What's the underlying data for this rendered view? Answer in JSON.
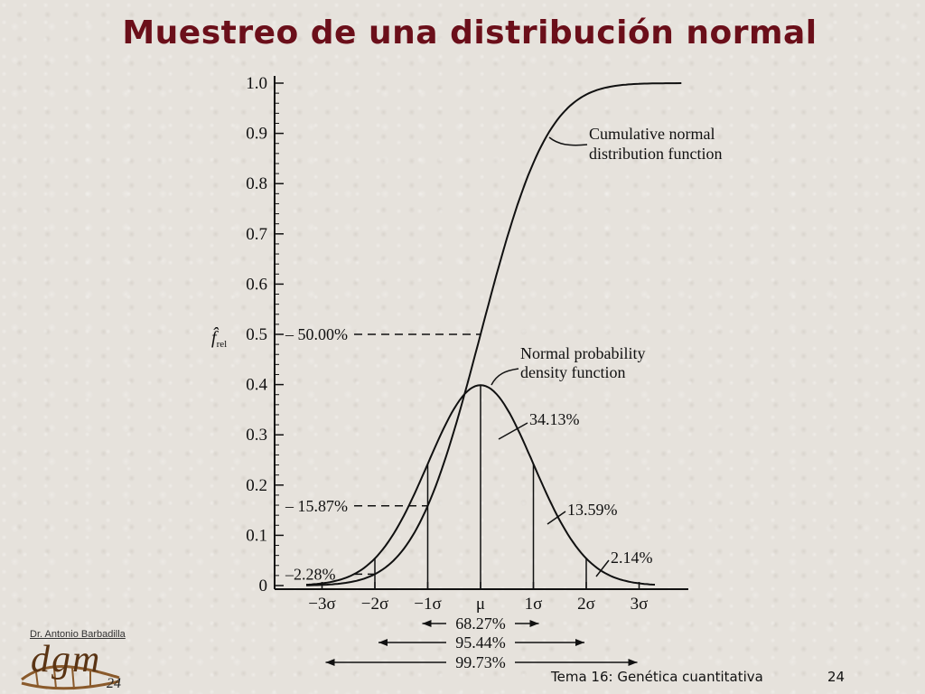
{
  "slide": {
    "title": "Muestreo de una distribución normal",
    "author": "Dr. Antonio Barbadilla",
    "logo_text": "dgm",
    "logo_number": "24",
    "footer_title": "Tema 16: Genética cuantitativa",
    "page_number": "24"
  },
  "chart_data": {
    "type": "line",
    "title": "",
    "ylabel": "f̂ rel",
    "ylim": [
      0,
      1.0
    ],
    "y_ticks": [
      "0",
      "0.1",
      "0.2",
      "0.3",
      "0.4",
      "0.5",
      "0.6",
      "0.7",
      "0.8",
      "0.9",
      "1.0"
    ],
    "x_ticks": [
      "−3σ",
      "−2σ",
      "−1σ",
      "μ",
      "1σ",
      "2σ",
      "3σ"
    ],
    "xlim": [
      -3.9,
      3.9
    ],
    "series": [
      {
        "name": "Cumulative normal distribution function",
        "x": [
          -3.0,
          -2.5,
          -2.0,
          -1.5,
          -1.0,
          -0.5,
          0.0,
          0.5,
          1.0,
          1.5,
          2.0,
          2.5,
          3.0,
          3.7
        ],
        "values": [
          0.001,
          0.006,
          0.023,
          0.067,
          0.159,
          0.309,
          0.5,
          0.691,
          0.841,
          0.933,
          0.977,
          0.994,
          0.999,
          1.0
        ]
      },
      {
        "name": "Normal probability density function",
        "x": [
          -3.0,
          -2.5,
          -2.0,
          -1.5,
          -1.0,
          -0.5,
          0.0,
          0.5,
          1.0,
          1.5,
          2.0,
          2.5,
          3.0
        ],
        "values": [
          0.004,
          0.018,
          0.054,
          0.13,
          0.242,
          0.352,
          0.399,
          0.352,
          0.242,
          0.13,
          0.054,
          0.018,
          0.004
        ]
      }
    ],
    "reference_lines": [
      {
        "label": "50.00%",
        "y": 0.5,
        "x": 0.0
      },
      {
        "label": "15.87%",
        "y": 0.1587,
        "x": -1.0
      },
      {
        "label": "2.28%",
        "y": 0.0228,
        "x": -2.0
      }
    ],
    "area_labels": [
      "34.13%",
      "13.59%",
      "2.14%"
    ],
    "interval_labels": [
      "68.27%",
      "95.44%",
      "99.73%"
    ]
  }
}
